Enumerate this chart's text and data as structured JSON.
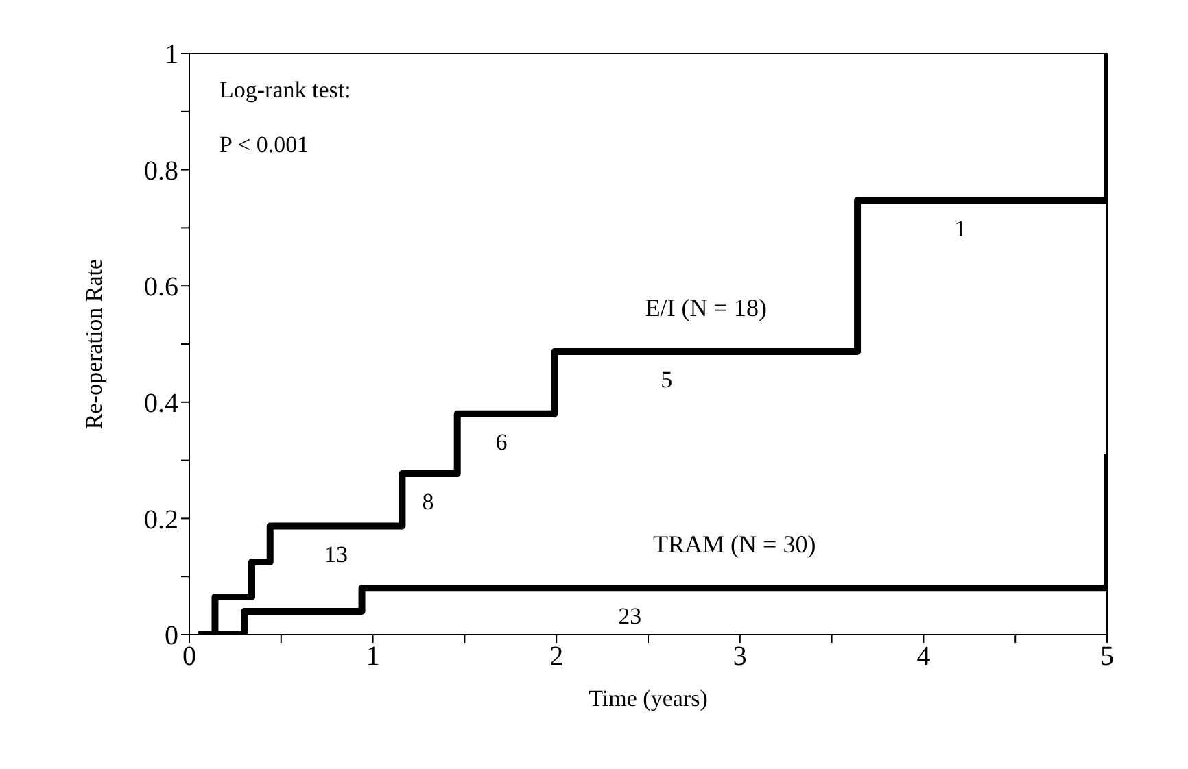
{
  "chart_data": {
    "type": "step",
    "xlabel": "Time (years)",
    "ylabel": "Re-operation Rate",
    "xlim": [
      0,
      5
    ],
    "ylim": [
      0,
      1
    ],
    "xticks": [
      0,
      {
        "value": 0.5,
        "label": null
      },
      1,
      {
        "value": 1.5,
        "label": null
      },
      2,
      {
        "value": 2.5,
        "label": null
      },
      3,
      {
        "value": 3.5,
        "label": null
      },
      4,
      {
        "value": 4.5,
        "label": null
      },
      5
    ],
    "yticks": [
      0,
      {
        "value": 0.1,
        "label": null
      },
      0.2,
      {
        "value": 0.3,
        "label": null
      },
      0.4,
      {
        "value": 0.5,
        "label": null
      },
      0.6,
      {
        "value": 0.7,
        "label": null
      },
      0.8,
      {
        "value": 0.9,
        "label": null
      },
      1
    ],
    "legend": false,
    "marker": "none",
    "line_style": "solid",
    "series": [
      {
        "name": "E/I (N = 18)",
        "color": "#000000",
        "x": [
          0.05,
          0.14,
          0.34,
          0.44,
          1.16,
          1.46,
          1.99,
          3.64,
          5
        ],
        "values": [
          0,
          0.065,
          0.125,
          0.187,
          0.277,
          0.38,
          0.487,
          0.747,
          1
        ]
      },
      {
        "name": "TRAM (N = 30)",
        "color": "#000000",
        "x": [
          0.05,
          0.3,
          0.94,
          5
        ],
        "values": [
          0,
          0.04,
          0.08,
          0.31
        ]
      }
    ],
    "annotations": [
      "Log-rank test:",
      "P < 0.001",
      {
        "text": "13",
        "x": 0.8,
        "y": 0.187
      },
      {
        "text": "8",
        "x": 1.3,
        "y": 0.277
      },
      {
        "text": "6",
        "x": 1.7,
        "y": 0.38
      },
      {
        "text": "5",
        "x": 2.6,
        "y": 0.487
      },
      {
        "text": "1",
        "x": 4.2,
        "y": 0.747
      },
      {
        "text": "23",
        "x": 2.4,
        "y": 0.08
      }
    ]
  }
}
